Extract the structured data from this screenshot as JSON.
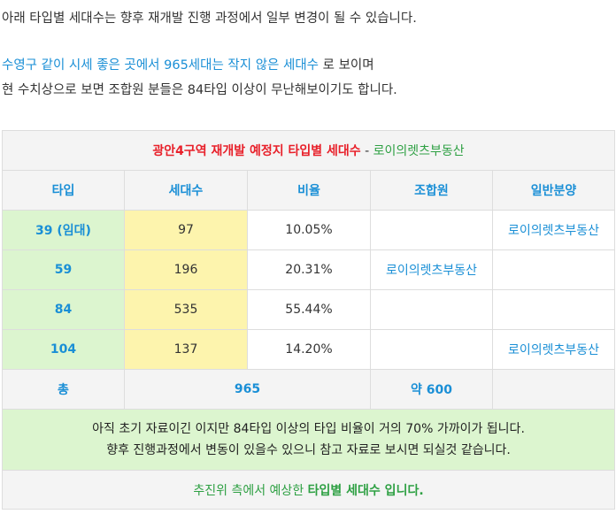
{
  "intro": {
    "line1": "아래 타입별 세대수는 향후 재개발 진행 과정에서 일부 변경이 될 수 있습니다.",
    "line2_highlight": "수영구 같이 시세 좋은 곳에서 965세대는 작지 않은 세대수",
    "line2_rest": " 로 보이며",
    "line3": "현 수치상으로 보면 조합원 분들은 84타입 이상이 무난해보이기도 합니다."
  },
  "table": {
    "caption_main": "광안4구역 재개발 예정지 타입별 세대수",
    "caption_sep": " - ",
    "caption_source": "로이의렛츠부동산",
    "headers": [
      "타입",
      "세대수",
      "비율",
      "조합원",
      "일반분양"
    ],
    "rows": [
      {
        "type": "39 (임대)",
        "units": "97",
        "ratio": "10.05%",
        "member": "",
        "general": "로이의렛츠부동산"
      },
      {
        "type": "59",
        "units": "196",
        "ratio": "20.31%",
        "member": "로이의렛츠부동산",
        "general": ""
      },
      {
        "type": "84",
        "units": "535",
        "ratio": "55.44%",
        "member": "",
        "general": ""
      },
      {
        "type": "104",
        "units": "137",
        "ratio": "14.20%",
        "member": "",
        "general": "로이의렛츠부동산"
      }
    ],
    "total": {
      "label": "총",
      "units": "965",
      "member": "약 600",
      "general": ""
    },
    "note_line1": "아직 초기 자료이긴 이지만 84타입 이상의 타입 비율이 거의 70% 가까이가 됩니다.",
    "note_line2": "향후 진행과정에서 변동이 있을수 있으니 참고 자료로 보시면 되실것 같습니다.",
    "footer_pre": "추진위 측에서 예상한 ",
    "footer_bold": "타입별 세대수 입니다."
  },
  "colors": {
    "accent_blue": "#1a8fd6",
    "caption_red": "#e8202a",
    "source_green": "#2ea043",
    "type_bg_green": "#dcf5cf",
    "units_bg_yellow": "#fdf4ad",
    "header_bg_gray": "#f4f4f4"
  }
}
